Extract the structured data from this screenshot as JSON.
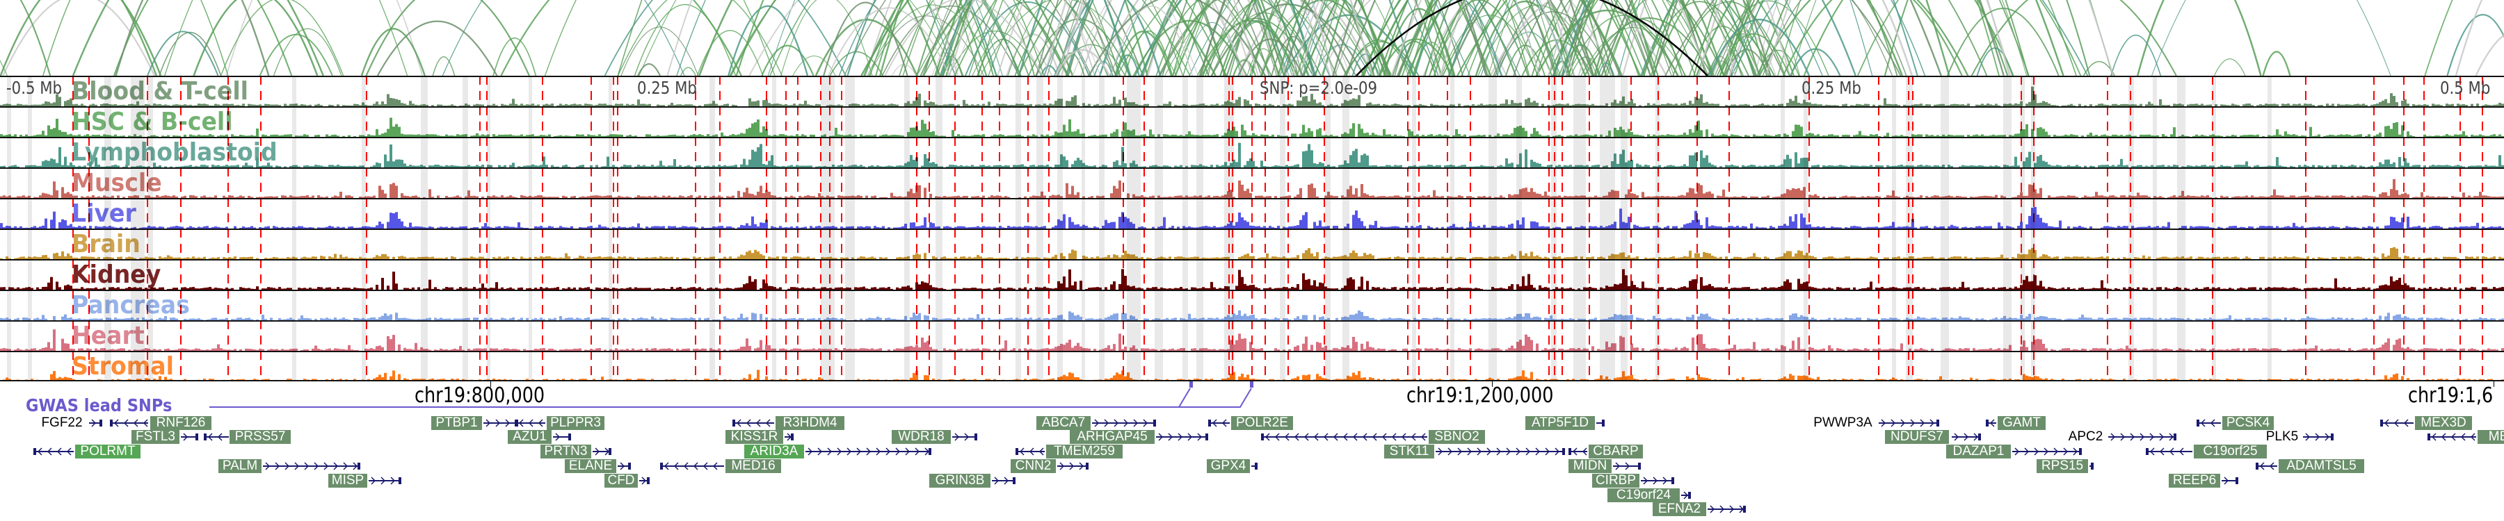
{
  "axis": {
    "left_label": "-0.5 Mb",
    "left_mid_label": "0.25 Mb",
    "snp_label": "SNP: p=2.0e-09",
    "right_mid_label": "0.25 Mb",
    "right_label": "0.5 Mb"
  },
  "tracks": [
    {
      "label": "Blood & T-cell",
      "color": "#6b8f6b"
    },
    {
      "label": "HSC & B-cell",
      "color": "#5aa55a"
    },
    {
      "label": "Lymphoblastoid",
      "color": "#4f9a8a"
    },
    {
      "label": "Muscle",
      "color": "#c8665c"
    },
    {
      "label": "Liver",
      "color": "#5555e6"
    },
    {
      "label": "Brain",
      "color": "#c89632"
    },
    {
      "label": "Kidney",
      "color": "#640000"
    },
    {
      "label": "Pancreas",
      "color": "#86a6e6"
    },
    {
      "label": "Heart",
      "color": "#d87080"
    },
    {
      "label": "Stromal",
      "color": "#ff7814"
    }
  ],
  "coordinates": {
    "c1": "chr19:800,000",
    "c2": "chr19:1,200,000",
    "c3": "chr19:1,6"
  },
  "gwas": {
    "label": "GWAS lead SNPs",
    "color": "#6a5acd"
  },
  "colors": {
    "snp_line": "#ff0000",
    "gene_strand": "#1a1a6e",
    "highlight_band": "#e3e3e3"
  },
  "genes": [
    {
      "name": "FGF22",
      "strand": "+",
      "label_style": "plain"
    },
    {
      "name": "RNF126",
      "strand": "-",
      "label_style": "box"
    },
    {
      "name": "FSTL3",
      "strand": "+",
      "label_style": "box"
    },
    {
      "name": "PRSS57",
      "strand": "-",
      "label_style": "box"
    },
    {
      "name": "POLRMT",
      "strand": "-",
      "label_style": "box-bright"
    },
    {
      "name": "PALM",
      "strand": "+",
      "label_style": "box"
    },
    {
      "name": "MISP",
      "strand": "+",
      "label_style": "box"
    },
    {
      "name": "PTBP1",
      "strand": "+",
      "label_style": "box"
    },
    {
      "name": "PLPPR3",
      "strand": "-",
      "label_style": "box"
    },
    {
      "name": "AZU1",
      "strand": "+",
      "label_style": "box"
    },
    {
      "name": "PRTN3",
      "strand": "+",
      "label_style": "box"
    },
    {
      "name": "ELANE",
      "strand": "+",
      "label_style": "box"
    },
    {
      "name": "CFD",
      "strand": "+",
      "label_style": "box"
    },
    {
      "name": "MED16",
      "strand": "-",
      "label_style": "box"
    },
    {
      "name": "R3HDM4",
      "strand": "-",
      "label_style": "box"
    },
    {
      "name": "KISS1R",
      "strand": "+",
      "label_style": "box"
    },
    {
      "name": "ARID3A",
      "strand": "+",
      "label_style": "box-bright"
    },
    {
      "name": "WDR18",
      "strand": "+",
      "label_style": "box"
    },
    {
      "name": "GRIN3B",
      "strand": "+",
      "label_style": "box"
    },
    {
      "name": "ABCA7",
      "strand": "+",
      "label_style": "box"
    },
    {
      "name": "ARHGAP45",
      "strand": "+",
      "label_style": "box"
    },
    {
      "name": "TMEM259",
      "strand": "-",
      "label_style": "box"
    },
    {
      "name": "CNN2",
      "strand": "+",
      "label_style": "box"
    },
    {
      "name": "POLR2E",
      "strand": "-",
      "label_style": "box"
    },
    {
      "name": "GPX4",
      "strand": "+",
      "label_style": "box"
    },
    {
      "name": "SBNO2",
      "strand": "-",
      "label_style": "box"
    },
    {
      "name": "STK11",
      "strand": "+",
      "label_style": "box"
    },
    {
      "name": "ATP5F1D",
      "strand": "+",
      "label_style": "box"
    },
    {
      "name": "CBARP",
      "strand": "-",
      "label_style": "box"
    },
    {
      "name": "MIDN",
      "strand": "+",
      "label_style": "box"
    },
    {
      "name": "CIRBP",
      "strand": "+",
      "label_style": "box"
    },
    {
      "name": "C19orf24",
      "strand": "+",
      "label_style": "box"
    },
    {
      "name": "EFNA2",
      "strand": "+",
      "label_style": "box"
    },
    {
      "name": "PWWP3A",
      "strand": "+",
      "label_style": "plain"
    },
    {
      "name": "GAMT",
      "strand": "-",
      "label_style": "box"
    },
    {
      "name": "NDUFS7",
      "strand": "+",
      "label_style": "box"
    },
    {
      "name": "DAZAP1",
      "strand": "+",
      "label_style": "box"
    },
    {
      "name": "RPS15",
      "strand": "+",
      "label_style": "box"
    },
    {
      "name": "APC2",
      "strand": "+",
      "label_style": "plain"
    },
    {
      "name": "PCSK4",
      "strand": "-",
      "label_style": "box"
    },
    {
      "name": "C19orf25",
      "strand": "-",
      "label_style": "box"
    },
    {
      "name": "PLK5",
      "strand": "+",
      "label_style": "plain"
    },
    {
      "name": "ADAMTSL5",
      "strand": "-",
      "label_style": "box"
    },
    {
      "name": "REEP6",
      "strand": "+",
      "label_style": "box"
    },
    {
      "name": "MEX3D",
      "strand": "-",
      "label_style": "box"
    },
    {
      "name": "MB",
      "strand": "-",
      "label_style": "box"
    }
  ]
}
